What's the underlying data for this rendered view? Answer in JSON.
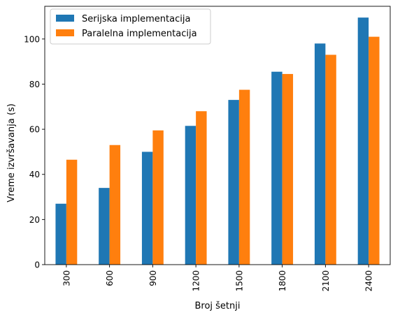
{
  "chart_data": {
    "type": "bar",
    "title": "",
    "xlabel": "Broj šetnji",
    "ylabel": "Vreme izvršavanja (s)",
    "categories": [
      "300",
      "600",
      "900",
      "1200",
      "1500",
      "1800",
      "2100",
      "2400"
    ],
    "series": [
      {
        "name": "Serijska implementacija",
        "color": "#1f77b4",
        "values": [
          27,
          34,
          50,
          61.5,
          73,
          85.5,
          98,
          109.5
        ]
      },
      {
        "name": "Paralelna implementacija",
        "color": "#ff7f0e",
        "values": [
          46.5,
          53,
          59.5,
          68,
          77.5,
          84.5,
          93,
          101
        ]
      }
    ],
    "ylim": [
      0,
      114.5
    ],
    "yticks": [
      0,
      20,
      40,
      60,
      80,
      100
    ],
    "legend": "top-left",
    "grid": false
  }
}
